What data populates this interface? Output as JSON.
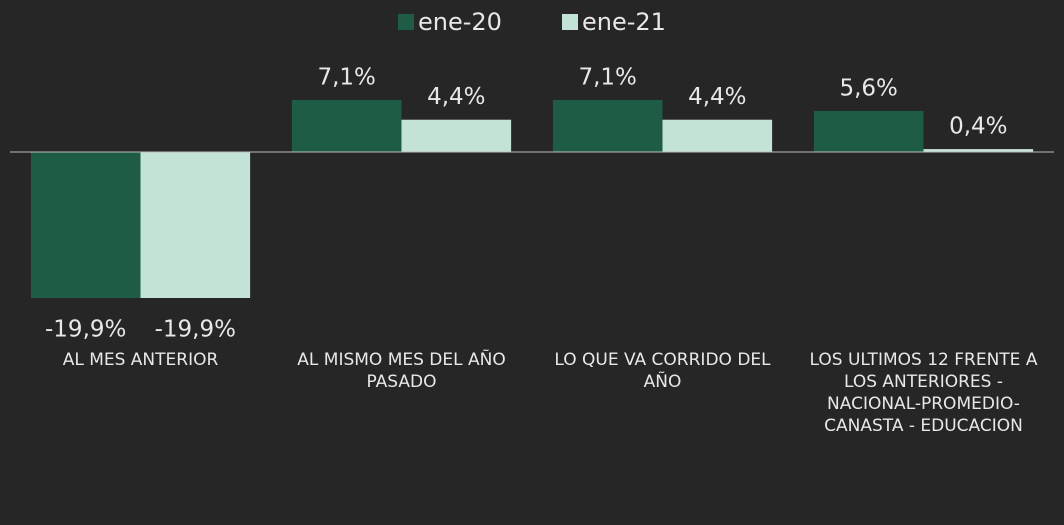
{
  "chart_data": {
    "type": "bar",
    "categories": [
      "AL MES ANTERIOR",
      "AL MISMO MES DEL AÑO PASADO",
      "LO QUE VA CORRIDO DEL AÑO",
      "LOS ULTIMOS 12 FRENTE A LOS ANTERIORES - NACIONAL-PROMEDIO-CANASTA - EDUCACION"
    ],
    "series": [
      {
        "name": "ene-20",
        "color": "#1f5c46",
        "values": [
          -19.9,
          7.1,
          7.1,
          5.6
        ],
        "value_labels": [
          "-19,9%",
          "7,1%",
          "7,1%",
          "5,6%"
        ]
      },
      {
        "name": "ene-21",
        "color": "#c2e3d6",
        "values": [
          -19.9,
          4.4,
          4.4,
          0.4
        ],
        "value_labels": [
          "-19,9%",
          "4,4%",
          "4,4%",
          "0,4%"
        ]
      }
    ],
    "legend": "top"
  }
}
